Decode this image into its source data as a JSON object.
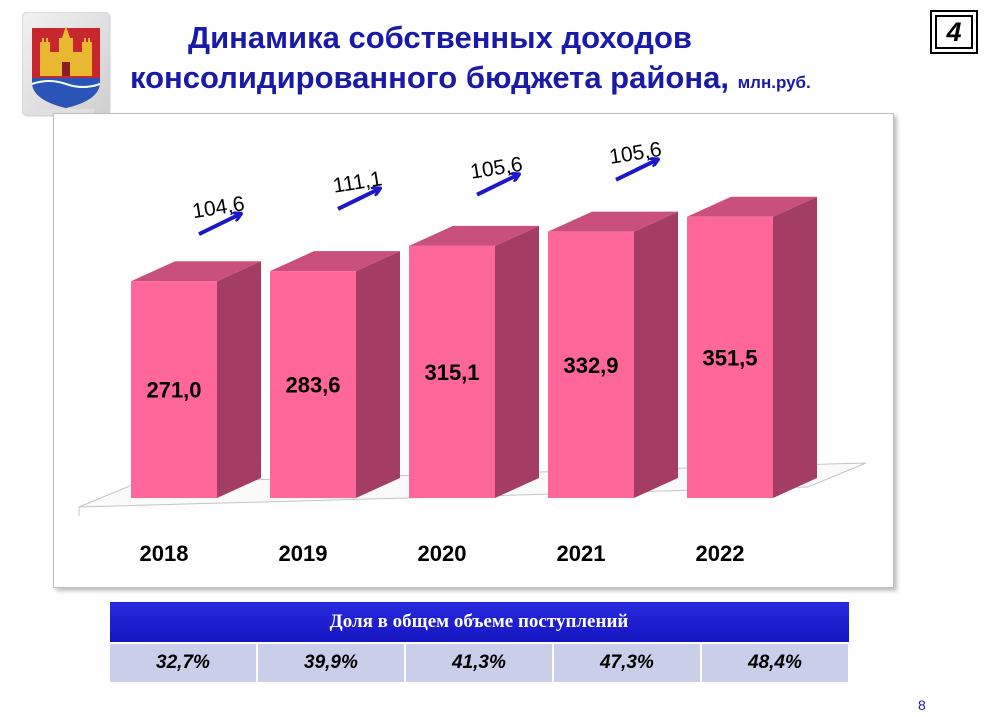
{
  "title": {
    "line1": "Динамика собственных доходов",
    "line2": "консолидированного бюджета района",
    "comma": ",",
    "unit": "млн.руб."
  },
  "page_badge": "4",
  "slide_number": "8",
  "colors": {
    "title": "#1a1aa8",
    "bar_front": "#ff6699",
    "bar_side": "#a33d63",
    "bar_top": "#c9507c",
    "arrow": "#1c18c8",
    "table_header": "#1c1cd6",
    "table_cell": "#c9cfe8"
  },
  "chart_data": {
    "type": "bar",
    "categories": [
      "2018",
      "2019",
      "2020",
      "2021",
      "2022"
    ],
    "values": [
      271.0,
      283.6,
      315.1,
      332.9,
      351.5
    ],
    "value_labels": [
      "271,0",
      "283,6",
      "315,1",
      "332,9",
      "351,5"
    ],
    "growth_labels": [
      "104,6",
      "111,1",
      "105,6",
      "105,6"
    ],
    "title": "",
    "xlabel": "",
    "ylabel": "",
    "grid": false,
    "legend": "none"
  },
  "share_table": {
    "header": "Доля в общем объеме поступлений",
    "values": [
      "32,7%",
      "39,9%",
      "41,3%",
      "47,3%",
      "48,4%"
    ]
  }
}
